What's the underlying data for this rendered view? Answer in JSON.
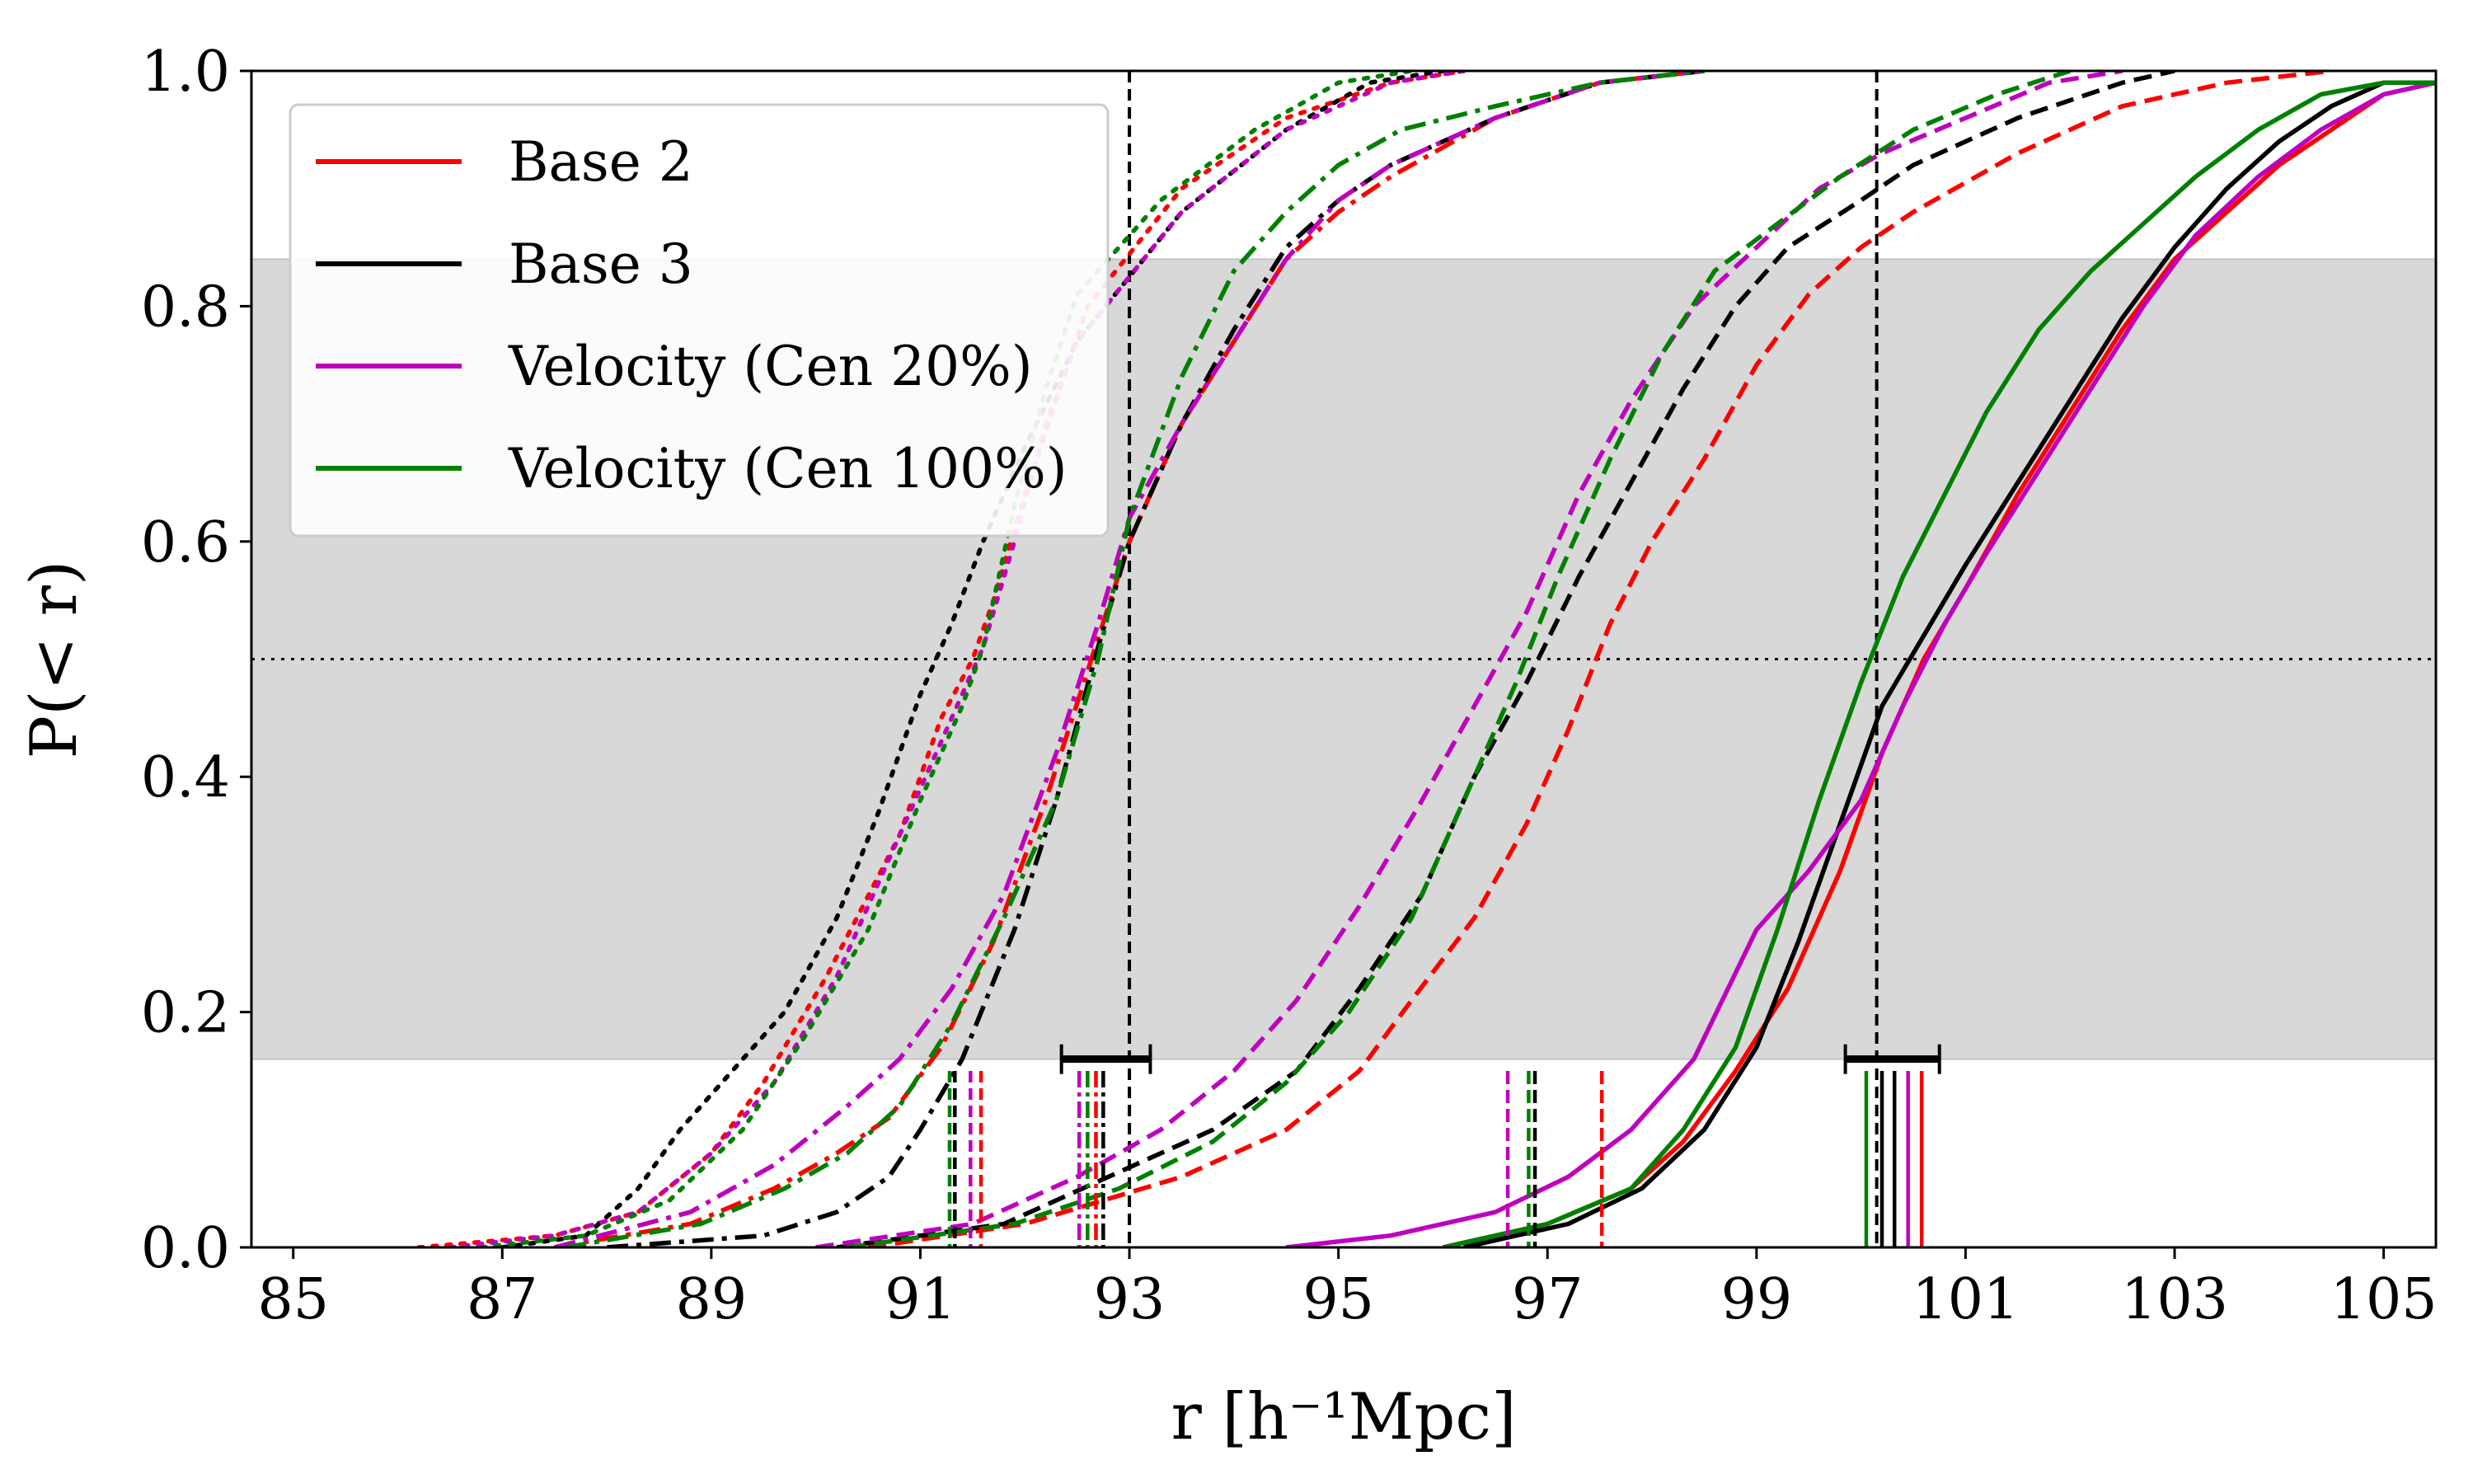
{
  "chart_data": {
    "type": "line",
    "title": "",
    "xlabel": "r [h⁻¹Mpc]",
    "ylabel": "P(< r)",
    "xlim": [
      84.6,
      105.5
    ],
    "ylim": [
      0.0,
      1.0
    ],
    "xticks": [
      85,
      87,
      89,
      91,
      93,
      95,
      97,
      99,
      101,
      103,
      105
    ],
    "xtick_labels": [
      "85",
      "87",
      "89",
      "91",
      "93",
      "95",
      "97",
      "99",
      "101",
      "103",
      "105"
    ],
    "yticks": [
      0.0,
      0.2,
      0.4,
      0.6,
      0.8,
      1.0
    ],
    "ytick_labels": [
      "0.0",
      "0.2",
      "0.4",
      "0.6",
      "0.8",
      "1.0"
    ],
    "grid": false,
    "legend_position": "top-left",
    "legend": [
      {
        "label": "Base 2",
        "color": "#ff0000"
      },
      {
        "label": "Base 3",
        "color": "#000000"
      },
      {
        "label": "Velocity (Cen 20%)",
        "color": "#bf00bf"
      },
      {
        "label": "Velocity (Cen 100%)",
        "color": "#008000"
      }
    ],
    "shaded_band": {
      "y_range": [
        0.16,
        0.84
      ],
      "color": "#d8d8d8"
    },
    "reference_lines": {
      "horizontal_dotted_y": 0.5,
      "vertical_dashed_x": [
        93.0,
        100.15
      ]
    },
    "error_bars": [
      {
        "center": 92.85,
        "lo": 92.35,
        "hi": 93.2,
        "y": 0.16
      },
      {
        "center": 100.3,
        "lo": 99.85,
        "hi": 100.75,
        "y": 0.16
      }
    ],
    "series": [
      {
        "name": "Base 2 (dotted)",
        "color": "#ff0000",
        "linestyle": "dotted",
        "x": [
          86.2,
          87.5,
          88.3,
          89.0,
          89.5,
          90.1,
          90.8,
          91.2,
          91.5,
          91.7,
          92.0,
          92.3,
          92.6,
          93.5,
          94.5,
          95.5,
          96.2
        ],
        "y": [
          0.0,
          0.01,
          0.03,
          0.08,
          0.14,
          0.23,
          0.35,
          0.45,
          0.5,
          0.55,
          0.64,
          0.72,
          0.8,
          0.9,
          0.96,
          0.99,
          1.0
        ]
      },
      {
        "name": "Base 3 (dotted)",
        "color": "#000000",
        "linestyle": "dotted",
        "x": [
          87.0,
          87.8,
          88.3,
          88.7,
          89.2,
          89.7,
          90.2,
          90.6,
          91.0,
          91.3,
          91.6,
          92.0,
          92.5,
          93.5,
          94.5,
          95.3,
          96.0
        ],
        "y": [
          0.0,
          0.01,
          0.05,
          0.1,
          0.15,
          0.2,
          0.28,
          0.37,
          0.47,
          0.53,
          0.6,
          0.68,
          0.77,
          0.88,
          0.95,
          0.99,
          1.0
        ]
      },
      {
        "name": "Velocity (Cen 20%) (dotted)",
        "color": "#bf00bf",
        "linestyle": "dotted",
        "x": [
          86.5,
          87.5,
          88.3,
          89.0,
          89.6,
          90.2,
          90.8,
          91.3,
          91.6,
          91.9,
          92.2,
          92.5,
          93.5,
          94.5,
          95.5,
          96.2
        ],
        "y": [
          0.0,
          0.01,
          0.03,
          0.08,
          0.14,
          0.23,
          0.35,
          0.45,
          0.51,
          0.6,
          0.7,
          0.77,
          0.88,
          0.95,
          0.99,
          1.0
        ]
      },
      {
        "name": "Velocity (Cen 100%) (dotted)",
        "color": "#008000",
        "linestyle": "dotted",
        "x": [
          86.8,
          87.8,
          88.6,
          89.3,
          89.9,
          90.5,
          91.0,
          91.4,
          91.6,
          91.9,
          92.2,
          92.5,
          93.3,
          94.2,
          95.0,
          95.7
        ],
        "y": [
          0.0,
          0.01,
          0.04,
          0.1,
          0.18,
          0.27,
          0.38,
          0.46,
          0.51,
          0.63,
          0.73,
          0.81,
          0.89,
          0.95,
          0.99,
          1.0
        ]
      },
      {
        "name": "Base 2 (dash-dot)",
        "color": "#ff0000",
        "linestyle": "dashdot",
        "x": [
          87.5,
          88.8,
          89.6,
          90.2,
          90.7,
          91.2,
          91.7,
          92.2,
          92.6,
          93.0,
          93.5,
          94.0,
          94.5,
          95.0,
          95.5,
          96.5,
          97.5,
          98.5
        ],
        "y": [
          0.0,
          0.02,
          0.05,
          0.08,
          0.11,
          0.17,
          0.26,
          0.38,
          0.49,
          0.6,
          0.7,
          0.77,
          0.84,
          0.88,
          0.91,
          0.96,
          0.99,
          1.0
        ]
      },
      {
        "name": "Base 3 (dash-dot)",
        "color": "#000000",
        "linestyle": "dashdot",
        "x": [
          88.0,
          89.5,
          90.2,
          90.7,
          91.0,
          91.4,
          91.9,
          92.3,
          92.7,
          93.0,
          93.5,
          94.0,
          94.5,
          95.0,
          95.5,
          96.5,
          97.5,
          98.5
        ],
        "y": [
          0.0,
          0.01,
          0.03,
          0.06,
          0.1,
          0.16,
          0.27,
          0.38,
          0.51,
          0.6,
          0.7,
          0.78,
          0.85,
          0.89,
          0.92,
          0.96,
          0.99,
          1.0
        ]
      },
      {
        "name": "Velocity (Cen 20%) (dash-dot)",
        "color": "#bf00bf",
        "linestyle": "dashdot",
        "x": [
          87.5,
          88.8,
          89.6,
          90.3,
          90.8,
          91.3,
          91.8,
          92.3,
          92.7,
          93.0,
          93.5,
          94.0,
          94.5,
          95.0,
          95.5,
          96.5,
          97.5,
          98.5
        ],
        "y": [
          0.0,
          0.03,
          0.07,
          0.12,
          0.16,
          0.22,
          0.3,
          0.42,
          0.53,
          0.62,
          0.7,
          0.77,
          0.84,
          0.89,
          0.92,
          0.96,
          0.99,
          1.0
        ]
      },
      {
        "name": "Velocity (Cen 100%) (dash-dot)",
        "color": "#008000",
        "linestyle": "dashdot",
        "x": [
          87.6,
          88.9,
          89.7,
          90.3,
          90.8,
          91.3,
          91.8,
          92.3,
          92.7,
          93.0,
          93.5,
          94.0,
          94.5,
          95.0,
          95.6,
          96.5,
          97.5,
          98.5
        ],
        "y": [
          0.0,
          0.02,
          0.05,
          0.08,
          0.12,
          0.19,
          0.28,
          0.38,
          0.5,
          0.62,
          0.74,
          0.83,
          0.88,
          0.92,
          0.95,
          0.97,
          0.99,
          1.0
        ]
      },
      {
        "name": "Base 2 (dashed)",
        "color": "#ff0000",
        "linestyle": "dashed",
        "x": [
          90.5,
          92.0,
          93.5,
          94.5,
          95.2,
          95.7,
          96.3,
          96.8,
          97.2,
          97.6,
          98.0,
          98.5,
          99.0,
          99.5,
          100.0,
          100.5,
          101.5,
          102.5,
          103.5,
          104.5
        ],
        "y": [
          0.0,
          0.02,
          0.06,
          0.1,
          0.15,
          0.21,
          0.28,
          0.36,
          0.44,
          0.53,
          0.6,
          0.67,
          0.75,
          0.81,
          0.85,
          0.88,
          0.93,
          0.97,
          0.99,
          1.0
        ]
      },
      {
        "name": "Base 3 (dashed)",
        "color": "#000000",
        "linestyle": "dashed",
        "x": [
          90.2,
          91.8,
          92.8,
          93.8,
          94.6,
          95.2,
          95.8,
          96.3,
          96.8,
          97.3,
          97.8,
          98.3,
          98.8,
          99.3,
          100.0,
          100.5,
          101.5,
          102.5,
          103.0
        ],
        "y": [
          0.0,
          0.02,
          0.06,
          0.1,
          0.15,
          0.22,
          0.3,
          0.4,
          0.48,
          0.57,
          0.65,
          0.73,
          0.8,
          0.85,
          0.89,
          0.92,
          0.96,
          0.99,
          1.0
        ]
      },
      {
        "name": "Velocity (Cen 20%) (dashed)",
        "color": "#bf00bf",
        "linestyle": "dashed",
        "x": [
          90.0,
          91.5,
          92.5,
          93.3,
          94.0,
          94.6,
          95.2,
          95.8,
          96.3,
          96.8,
          97.3,
          97.8,
          98.4,
          99.0,
          99.6,
          100.2,
          101.0,
          101.8,
          102.5
        ],
        "y": [
          0.0,
          0.02,
          0.06,
          0.1,
          0.15,
          0.21,
          0.29,
          0.38,
          0.46,
          0.54,
          0.64,
          0.72,
          0.8,
          0.85,
          0.9,
          0.93,
          0.96,
          0.99,
          1.0
        ]
      },
      {
        "name": "Velocity (Cen 100%) (dashed)",
        "color": "#008000",
        "linestyle": "dashed",
        "x": [
          90.3,
          91.9,
          92.9,
          93.8,
          94.5,
          95.1,
          95.7,
          96.2,
          96.7,
          97.1,
          97.6,
          98.1,
          98.6,
          99.2,
          99.8,
          100.5,
          101.3,
          102.0
        ],
        "y": [
          0.0,
          0.02,
          0.05,
          0.09,
          0.14,
          0.2,
          0.28,
          0.38,
          0.48,
          0.57,
          0.67,
          0.76,
          0.83,
          0.87,
          0.91,
          0.95,
          0.98,
          1.0
        ]
      },
      {
        "name": "Base 2 (solid)",
        "color": "#ff0000",
        "linestyle": "solid",
        "x": [
          96.0,
          97.0,
          97.8,
          98.3,
          98.8,
          99.3,
          99.8,
          100.2,
          100.6,
          101.0,
          101.5,
          102.0,
          102.5,
          103.0,
          103.5,
          104.0,
          104.5,
          105.0,
          105.5
        ],
        "y": [
          0.0,
          0.02,
          0.05,
          0.09,
          0.15,
          0.22,
          0.32,
          0.42,
          0.5,
          0.56,
          0.64,
          0.71,
          0.78,
          0.84,
          0.88,
          0.92,
          0.95,
          0.98,
          0.99
        ]
      },
      {
        "name": "Base 3 (solid)",
        "color": "#000000",
        "linestyle": "solid",
        "x": [
          96.2,
          97.2,
          97.9,
          98.5,
          99.0,
          99.4,
          99.8,
          100.2,
          100.6,
          101.0,
          101.5,
          102.0,
          102.5,
          103.0,
          103.5,
          104.0,
          104.5,
          105.0,
          105.5
        ],
        "y": [
          0.0,
          0.02,
          0.05,
          0.1,
          0.17,
          0.26,
          0.36,
          0.46,
          0.52,
          0.58,
          0.65,
          0.72,
          0.79,
          0.85,
          0.9,
          0.94,
          0.97,
          0.99,
          0.99
        ]
      },
      {
        "name": "Velocity (Cen 20%) (solid)",
        "color": "#bf00bf",
        "linestyle": "solid",
        "x": [
          94.5,
          95.5,
          96.5,
          97.2,
          97.8,
          98.4,
          99.0,
          99.5,
          100.0,
          100.4,
          100.8,
          101.2,
          101.7,
          102.2,
          102.7,
          103.2,
          103.8,
          104.4,
          105.0,
          105.5
        ],
        "y": [
          0.0,
          0.01,
          0.03,
          0.06,
          0.1,
          0.16,
          0.27,
          0.32,
          0.38,
          0.46,
          0.53,
          0.59,
          0.66,
          0.73,
          0.8,
          0.86,
          0.91,
          0.95,
          0.98,
          0.99
        ]
      },
      {
        "name": "Velocity (Cen 100%) (solid)",
        "color": "#008000",
        "linestyle": "solid",
        "x": [
          96.0,
          97.0,
          97.8,
          98.3,
          98.8,
          99.2,
          99.6,
          100.0,
          100.4,
          100.8,
          101.2,
          101.7,
          102.2,
          102.7,
          103.2,
          103.8,
          104.4,
          105.0,
          105.5
        ],
        "y": [
          0.0,
          0.02,
          0.05,
          0.1,
          0.17,
          0.27,
          0.38,
          0.48,
          0.57,
          0.64,
          0.71,
          0.78,
          0.83,
          0.87,
          0.91,
          0.95,
          0.98,
          0.99,
          0.99
        ]
      }
    ],
    "median_markers": [
      {
        "x": 91.28,
        "color": "#008000",
        "linestyle": "dotted"
      },
      {
        "x": 91.33,
        "color": "#000000",
        "linestyle": "dotted"
      },
      {
        "x": 91.48,
        "color": "#bf00bf",
        "linestyle": "dotted"
      },
      {
        "x": 91.58,
        "color": "#ff0000",
        "linestyle": "dotted"
      },
      {
        "x": 92.52,
        "color": "#bf00bf",
        "linestyle": "dashdot"
      },
      {
        "x": 92.6,
        "color": "#008000",
        "linestyle": "dashdot"
      },
      {
        "x": 92.68,
        "color": "#ff0000",
        "linestyle": "dashdot"
      },
      {
        "x": 92.75,
        "color": "#000000",
        "linestyle": "dashdot"
      },
      {
        "x": 96.62,
        "color": "#bf00bf",
        "linestyle": "dashed"
      },
      {
        "x": 96.82,
        "color": "#008000",
        "linestyle": "dashed"
      },
      {
        "x": 96.88,
        "color": "#000000",
        "linestyle": "dashed"
      },
      {
        "x": 97.52,
        "color": "#ff0000",
        "linestyle": "dashed"
      },
      {
        "x": 100.05,
        "color": "#008000",
        "linestyle": "solid"
      },
      {
        "x": 100.2,
        "color": "#000000",
        "linestyle": "solid"
      },
      {
        "x": 100.32,
        "color": "#000000",
        "linestyle": "solid"
      },
      {
        "x": 100.45,
        "color": "#bf00bf",
        "linestyle": "solid"
      },
      {
        "x": 100.58,
        "color": "#ff0000",
        "linestyle": "solid"
      }
    ],
    "median_marker_height": 0.15
  }
}
